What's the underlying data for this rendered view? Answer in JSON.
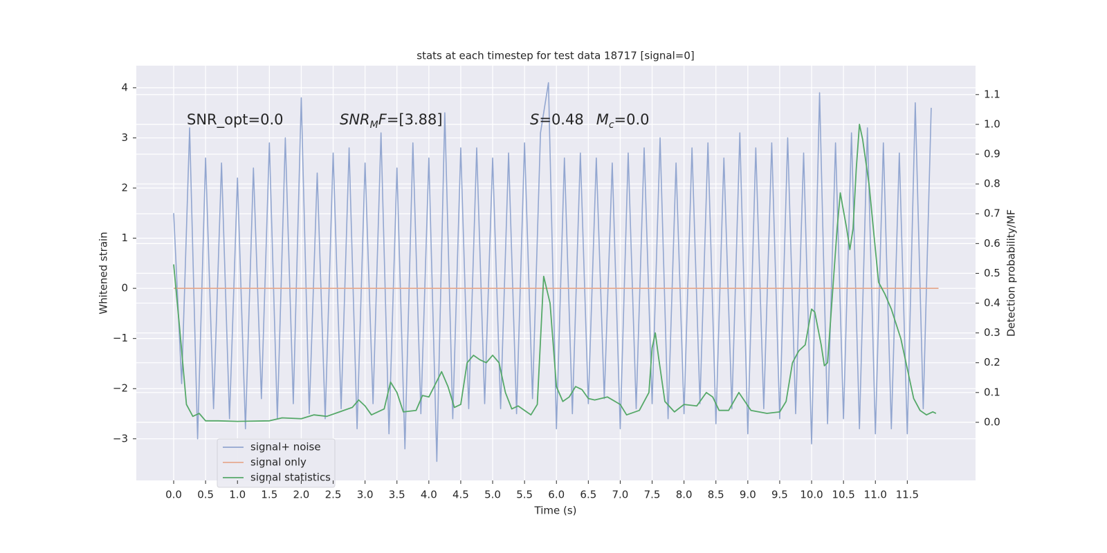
{
  "chart_data": {
    "type": "line",
    "title": "stats at each timestep for test data 18717 [signal=0]",
    "xlabel": "Time (s)",
    "ylabel": "Whitened strain",
    "y2label": "Detection probability/MF",
    "annotations": [
      [
        "SNR_opt=0.0"
      ],
      [
        "SNR",
        "M",
        "F",
        "=[3.88]"
      ],
      [
        "S",
        "=0.48",
        "M",
        "c",
        "=0.0"
      ]
    ],
    "xlim": [
      -0.586,
      12.57
    ],
    "ylim": [
      -3.83,
      4.44
    ],
    "y2lim": [
      -0.195,
      1.197
    ],
    "xticks": [
      {
        "value": 0,
        "label": "0.0"
      },
      0.5,
      {
        "value": 1,
        "label": "1.0"
      },
      1.5,
      {
        "value": 2,
        "label": "2.0"
      },
      2.5,
      {
        "value": 3,
        "label": "3.0"
      },
      3.5,
      {
        "value": 4,
        "label": "4.0"
      },
      4.5,
      {
        "value": 5,
        "label": "5.0"
      },
      5.5,
      {
        "value": 6,
        "label": "6.0"
      },
      6.5,
      {
        "value": 7,
        "label": "7.0"
      },
      7.5,
      {
        "value": 8,
        "label": "8.0"
      },
      8.5,
      {
        "value": 9,
        "label": "9.0"
      },
      9.5,
      {
        "value": 10,
        "label": "10.0"
      },
      10.5,
      {
        "value": 11,
        "label": "11.0"
      },
      11.5
    ],
    "yticks": [
      {
        "value": -3,
        "label": "−3"
      },
      {
        "value": -2,
        "label": "−2"
      },
      {
        "value": -1,
        "label": "−1"
      },
      0,
      1,
      2,
      3,
      4
    ],
    "y2ticks": [
      {
        "value": 0,
        "label": "0.0"
      },
      0.1,
      0.2,
      0.3,
      0.4,
      0.5,
      0.6,
      0.7,
      0.8,
      0.9,
      {
        "value": 1,
        "label": "1.0"
      },
      1.1
    ],
    "grid": true,
    "legend": "lower left",
    "series": [
      {
        "name": "signal+ noise",
        "color": "#92a6d0",
        "axis": "y",
        "x": [
          0,
          0.125,
          0.25,
          0.375,
          0.5,
          0.625,
          0.75,
          0.875,
          1,
          1.125,
          1.25,
          1.375,
          1.5,
          1.625,
          1.75,
          1.875,
          2,
          2.125,
          2.25,
          2.375,
          2.5,
          2.625,
          2.75,
          2.875,
          3,
          3.125,
          3.25,
          3.375,
          3.5,
          3.625,
          3.75,
          3.875,
          4,
          4.125,
          4.25,
          4.375,
          4.5,
          4.625,
          4.75,
          4.875,
          5,
          5.125,
          5.25,
          5.375,
          5.5,
          5.625,
          5.75,
          5.875,
          6,
          6.125,
          6.25,
          6.375,
          6.5,
          6.625,
          6.75,
          6.875,
          7,
          7.125,
          7.25,
          7.375,
          7.5,
          7.625,
          7.75,
          7.875,
          8,
          8.125,
          8.25,
          8.375,
          8.5,
          8.625,
          8.75,
          8.875,
          9,
          9.125,
          9.25,
          9.375,
          9.5,
          9.625,
          9.75,
          9.875,
          10,
          10.125,
          10.25,
          10.375,
          10.5,
          10.625,
          10.75,
          10.875,
          11,
          11.125,
          11.25,
          11.375,
          11.5,
          11.625,
          11.75,
          11.875
        ],
        "values": [
          1.5,
          -1.9,
          3.2,
          -3.0,
          2.6,
          -2.4,
          2.5,
          -2.6,
          2.2,
          -2.8,
          2.4,
          -2.2,
          2.9,
          -2.6,
          3.0,
          -2.3,
          3.8,
          -2.5,
          2.3,
          -2.6,
          2.7,
          -2.4,
          2.8,
          -2.8,
          2.5,
          -2.3,
          3.1,
          -2.9,
          2.4,
          -3.2,
          2.9,
          -2.5,
          2.6,
          -3.45,
          3.5,
          -2.6,
          2.8,
          -2.4,
          2.8,
          -2.3,
          2.6,
          -2.4,
          2.7,
          -2.5,
          2.9,
          -2.2,
          3.1,
          4.1,
          -2.8,
          2.6,
          -2.5,
          2.7,
          -2.3,
          2.6,
          -2.2,
          2.5,
          -2.8,
          2.7,
          -2.4,
          2.8,
          -2.3,
          3.0,
          -2.6,
          2.5,
          -2.5,
          2.8,
          -2.3,
          2.9,
          -2.7,
          2.6,
          -2.4,
          3.1,
          -2.9,
          2.8,
          -2.4,
          2.9,
          -2.6,
          3.0,
          -2.5,
          2.7,
          -3.1,
          3.9,
          -2.7,
          2.9,
          -2.6,
          3.1,
          -2.8,
          3.2,
          -2.9,
          2.9,
          -2.8,
          2.7,
          -2.9,
          3.7,
          -2.4,
          3.6
        ]
      },
      {
        "name": "signal only",
        "color": "#e6a98f",
        "axis": "y",
        "x": [
          0,
          11.99
        ],
        "values": [
          0,
          0
        ]
      },
      {
        "name": "signal statistics",
        "color": "#55a868",
        "axis": "y2",
        "x": [
          0,
          0.1,
          0.2,
          0.3,
          0.4,
          0.5,
          0.7,
          1,
          1.5,
          1.7,
          2,
          2.2,
          2.4,
          2.6,
          2.8,
          2.9,
          3,
          3.1,
          3.3,
          3.4,
          3.5,
          3.6,
          3.8,
          3.9,
          4,
          4.2,
          4.3,
          4.4,
          4.5,
          4.6,
          4.7,
          4.8,
          4.9,
          5,
          5.1,
          5.2,
          5.3,
          5.4,
          5.5,
          5.6,
          5.7,
          5.8,
          5.9,
          6,
          6.1,
          6.2,
          6.3,
          6.4,
          6.5,
          6.6,
          6.8,
          7,
          7.1,
          7.3,
          7.45,
          7.5,
          7.55,
          7.6,
          7.7,
          7.85,
          8,
          8.2,
          8.35,
          8.45,
          8.55,
          8.7,
          8.86,
          9.05,
          9.3,
          9.5,
          9.6,
          9.7,
          9.8,
          9.9,
          10,
          10.05,
          10.15,
          10.2,
          10.25,
          10.3,
          10.4,
          10.45,
          10.55,
          10.6,
          10.65,
          10.7,
          10.75,
          10.8,
          10.9,
          11,
          11.05,
          11.15,
          11.25,
          11.4,
          11.5,
          11.6,
          11.7,
          11.8,
          11.9,
          11.95
        ],
        "values": [
          0.53,
          0.3,
          0.06,
          0.02,
          0.03,
          0.005,
          0.005,
          0.003,
          0.005,
          0.015,
          0.012,
          0.025,
          0.02,
          0.035,
          0.05,
          0.075,
          0.055,
          0.025,
          0.045,
          0.135,
          0.1,
          0.035,
          0.04,
          0.09,
          0.085,
          0.17,
          0.12,
          0.05,
          0.06,
          0.2,
          0.225,
          0.21,
          0.2,
          0.225,
          0.2,
          0.1,
          0.045,
          0.055,
          0.04,
          0.025,
          0.06,
          0.49,
          0.4,
          0.12,
          0.07,
          0.085,
          0.12,
          0.11,
          0.08,
          0.075,
          0.085,
          0.06,
          0.025,
          0.04,
          0.1,
          0.25,
          0.3,
          0.22,
          0.07,
          0.035,
          0.06,
          0.055,
          0.1,
          0.085,
          0.04,
          0.04,
          0.1,
          0.04,
          0.03,
          0.035,
          0.07,
          0.2,
          0.24,
          0.26,
          0.38,
          0.37,
          0.26,
          0.19,
          0.2,
          0.35,
          0.65,
          0.77,
          0.65,
          0.58,
          0.65,
          0.85,
          1.0,
          0.95,
          0.8,
          0.58,
          0.47,
          0.43,
          0.38,
          0.28,
          0.18,
          0.08,
          0.04,
          0.025,
          0.035,
          0.03
        ]
      }
    ]
  }
}
